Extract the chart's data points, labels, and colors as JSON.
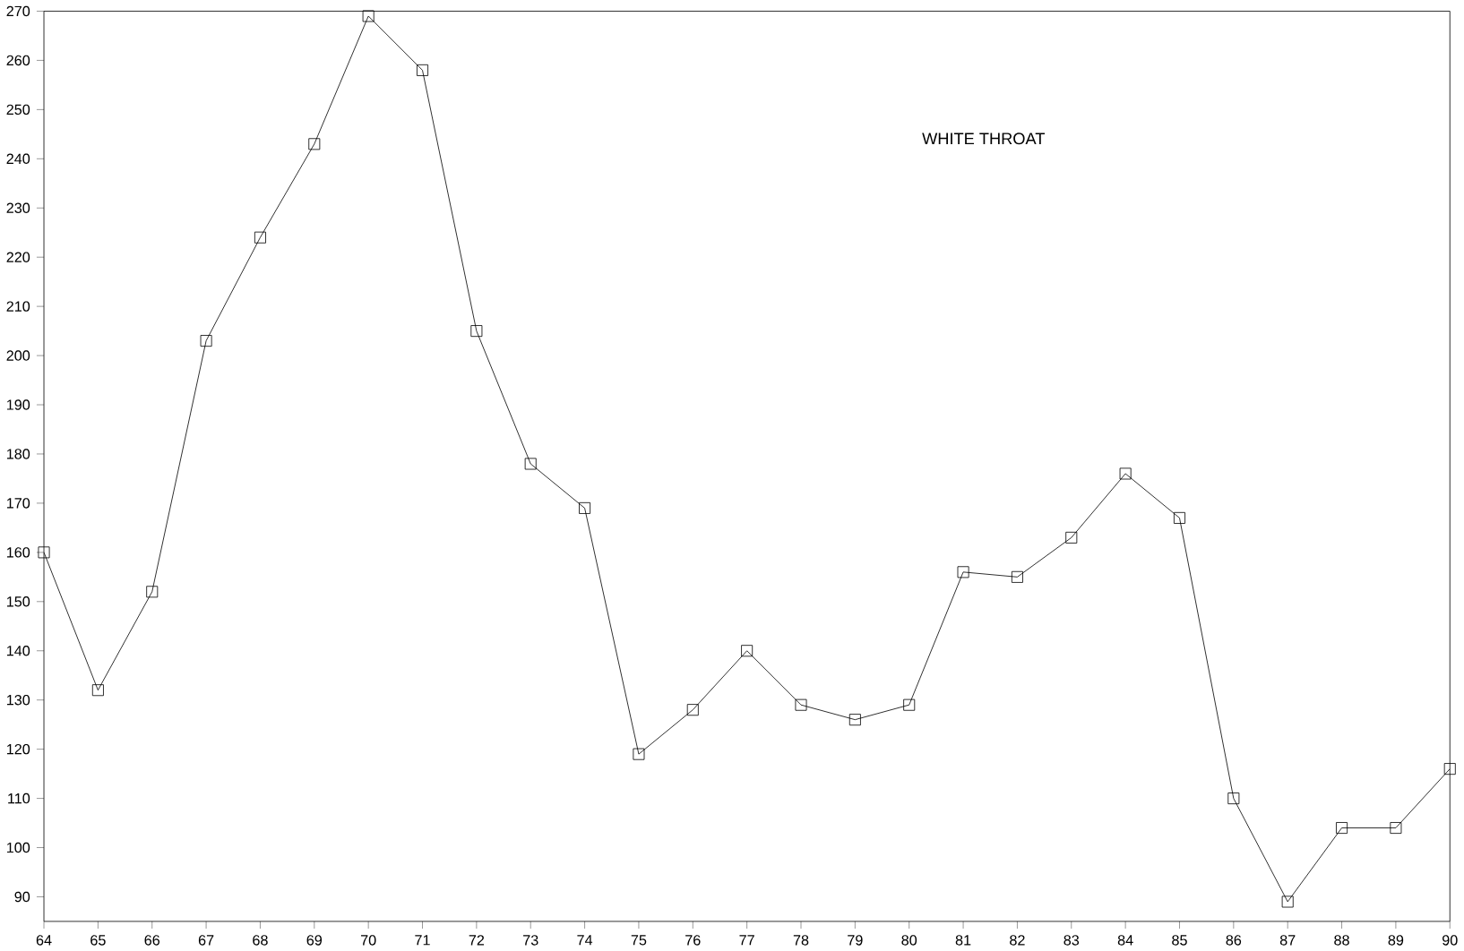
{
  "chart_data": {
    "type": "line",
    "annotations": [
      "WHITE THROAT"
    ],
    "x": [
      64,
      65,
      66,
      67,
      68,
      69,
      70,
      71,
      72,
      73,
      74,
      75,
      76,
      77,
      78,
      79,
      80,
      81,
      82,
      83,
      84,
      85,
      86,
      87,
      88,
      89,
      90
    ],
    "series": [
      {
        "color": "#000000",
        "values": [
          160,
          132,
          152,
          203,
          224,
          243,
          269,
          258,
          205,
          178,
          169,
          119,
          128,
          140,
          129,
          126,
          129,
          156,
          155,
          163,
          176,
          167,
          110,
          89,
          104,
          104,
          116
        ]
      }
    ],
    "xlim": [
      64,
      90
    ],
    "ylim": [
      85,
      270
    ],
    "xticks": [
      64,
      65,
      66,
      67,
      68,
      69,
      70,
      71,
      72,
      73,
      74,
      75,
      76,
      77,
      78,
      79,
      80,
      81,
      82,
      83,
      84,
      85,
      86,
      87,
      88,
      89,
      90
    ],
    "yticks": [
      90,
      100,
      110,
      120,
      130,
      140,
      150,
      160,
      170,
      180,
      190,
      200,
      210,
      220,
      230,
      240,
      250,
      260,
      270
    ],
    "marker": "square",
    "line_style": "solid"
  }
}
